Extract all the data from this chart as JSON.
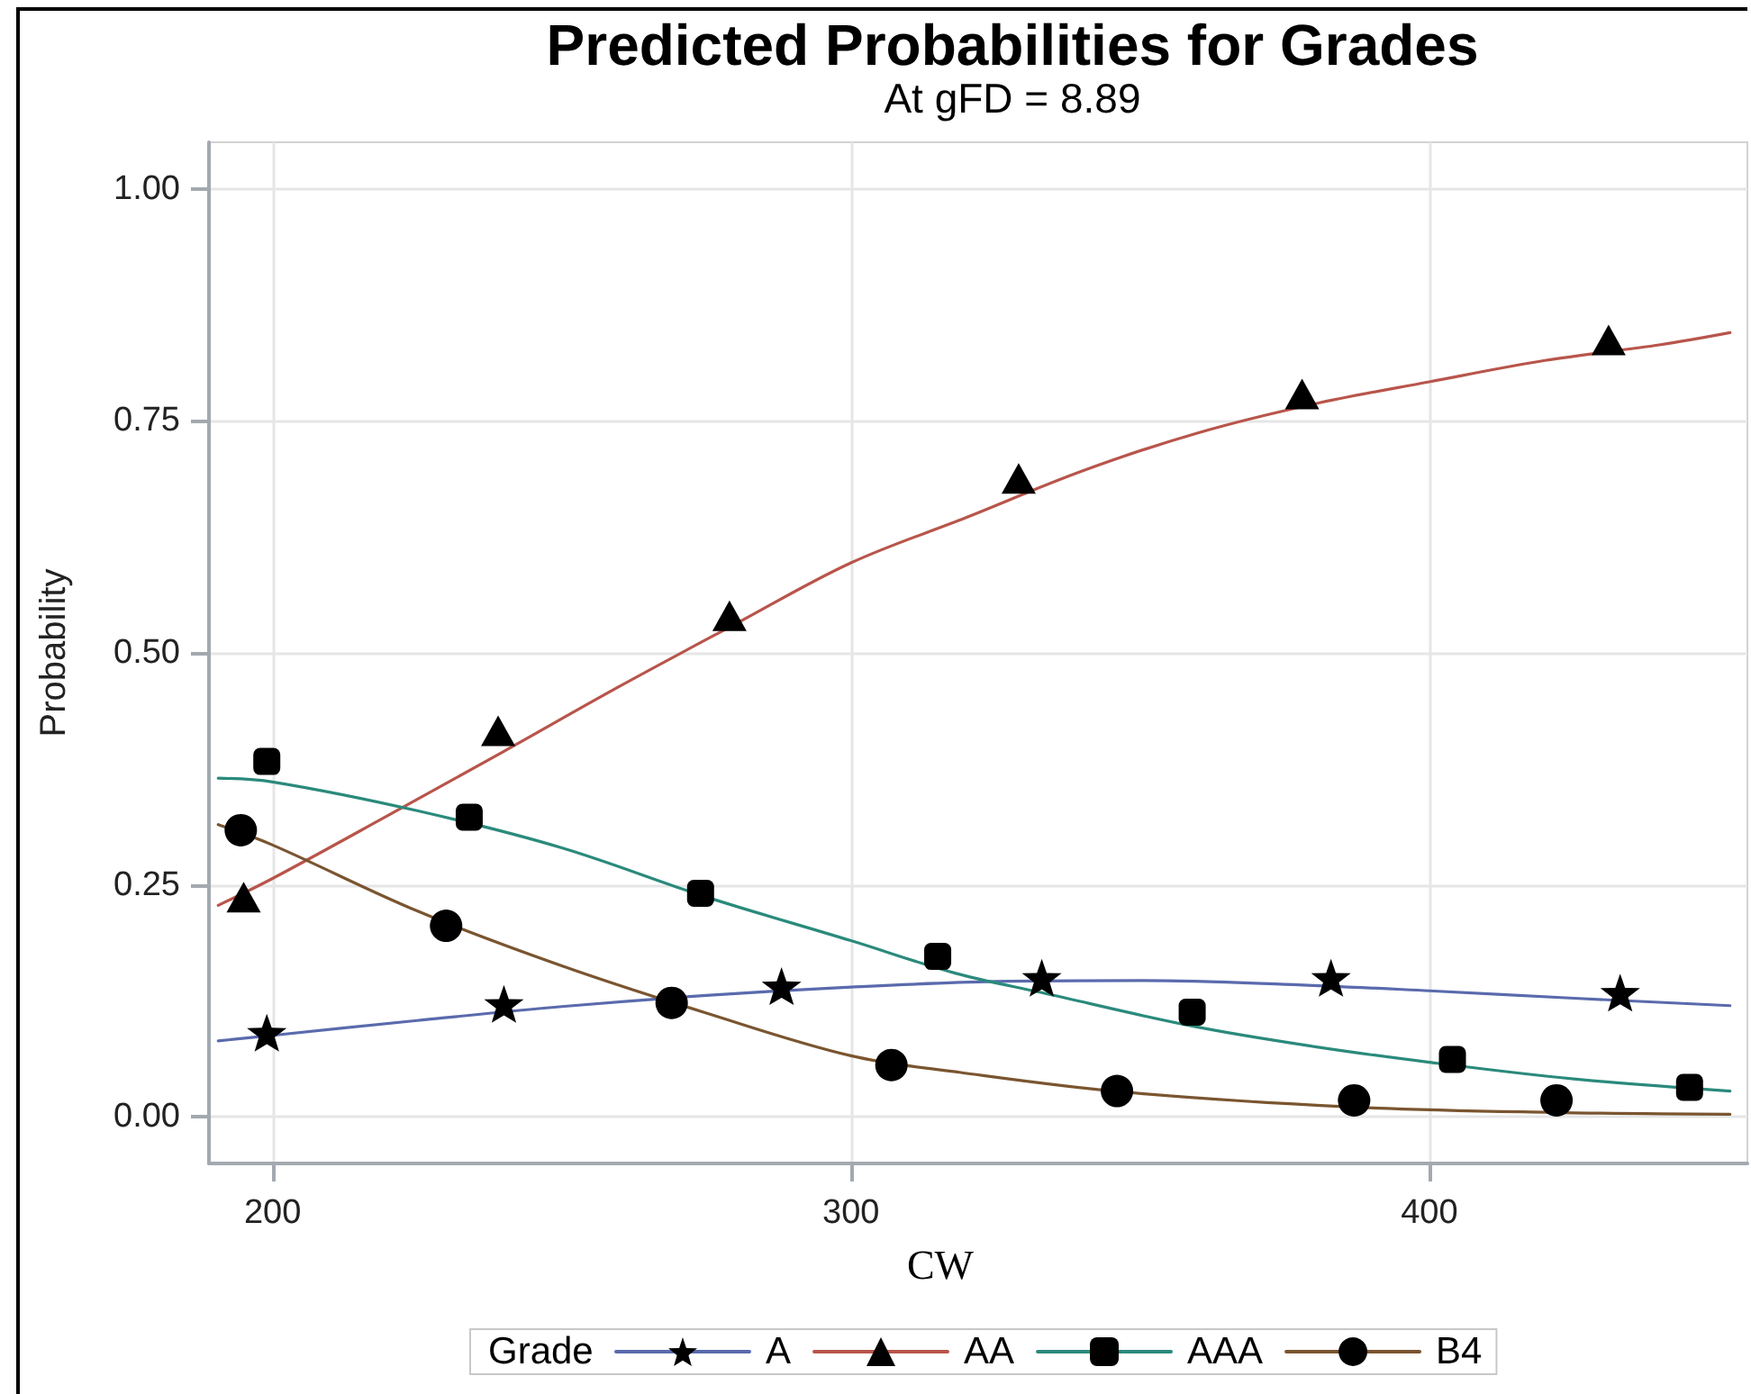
{
  "chart_data": {
    "type": "line",
    "title": "Predicted Probabilities for Grades",
    "subtitle": "At gFD = 8.89",
    "xlabel": "CW",
    "ylabel": "Probability",
    "legend_title": "Grade",
    "xlim": [
      189,
      455
    ],
    "xticks": [
      200,
      300,
      400
    ],
    "ylim": [
      -0.05,
      1.05
    ],
    "yticks": [
      {
        "value": 0,
        "label": "0.00"
      },
      0.25,
      {
        "value": 0.5,
        "label": "0.50"
      },
      0.75,
      {
        "value": 1,
        "label": "1.00"
      }
    ],
    "grid": true,
    "legend": "bottom",
    "series": [
      {
        "name": "A",
        "color": "#5a6aad",
        "marker": "none",
        "x": [
          190.6,
          200,
          225,
          250,
          275,
          300,
          325,
          350,
          375,
          400,
          425,
          452
        ],
        "values": [
          0.082,
          0.088,
          0.104,
          0.119,
          0.131,
          0.14,
          0.146,
          0.147,
          0.143,
          0.136,
          0.128,
          0.12
        ]
      },
      {
        "type": "scatter",
        "color": "#000000",
        "marker": "star",
        "x": [
          199,
          240,
          288,
          333,
          383,
          433
        ],
        "values": [
          0.091,
          0.122,
          0.141,
          0.15,
          0.15,
          0.134
        ]
      },
      {
        "name": "AA",
        "color": "#b8554b",
        "marker": "none",
        "x": [
          190.6,
          200,
          220,
          240,
          260,
          280,
          300,
          320,
          340,
          360,
          380,
          400,
          420,
          440,
          452
        ],
        "values": [
          0.228,
          0.257,
          0.325,
          0.394,
          0.464,
          0.531,
          0.597,
          0.646,
          0.696,
          0.737,
          0.768,
          0.792,
          0.815,
          0.832,
          0.845
        ]
      },
      {
        "type": "scatter",
        "color": "#000000",
        "marker": "triangle",
        "x": [
          195,
          239,
          279,
          329,
          378,
          431
        ],
        "values": [
          0.237,
          0.416,
          0.54,
          0.688,
          0.779,
          0.837
        ]
      },
      {
        "name": "AAA",
        "color": "#2a8a7c",
        "marker": "none",
        "x": [
          190.6,
          200,
          225,
          250,
          275,
          300,
          318,
          333,
          359,
          380,
          400,
          425,
          452
        ],
        "values": [
          0.365,
          0.361,
          0.33,
          0.29,
          0.237,
          0.19,
          0.155,
          0.134,
          0.098,
          0.076,
          0.059,
          0.041,
          0.028
        ]
      },
      {
        "type": "scatter",
        "color": "#000000",
        "marker": "square",
        "x": [
          199,
          234,
          274,
          315,
          359,
          404,
          445
        ],
        "values": [
          0.383,
          0.323,
          0.241,
          0.173,
          0.113,
          0.062,
          0.032
        ]
      },
      {
        "name": "B4",
        "color": "#7a5530",
        "marker": "none",
        "x": [
          190.6,
          200,
          225,
          250,
          275,
          300,
          319,
          347,
          386,
          421,
          452
        ],
        "values": [
          0.315,
          0.293,
          0.222,
          0.163,
          0.112,
          0.066,
          0.048,
          0.027,
          0.011,
          0.005,
          0.003
        ]
      },
      {
        "type": "scatter",
        "color": "#000000",
        "marker": "circle",
        "x": [
          194.5,
          230,
          269,
          307,
          346,
          387,
          422
        ],
        "values": [
          0.309,
          0.206,
          0.123,
          0.056,
          0.028,
          0.018,
          0.018
        ]
      }
    ]
  }
}
